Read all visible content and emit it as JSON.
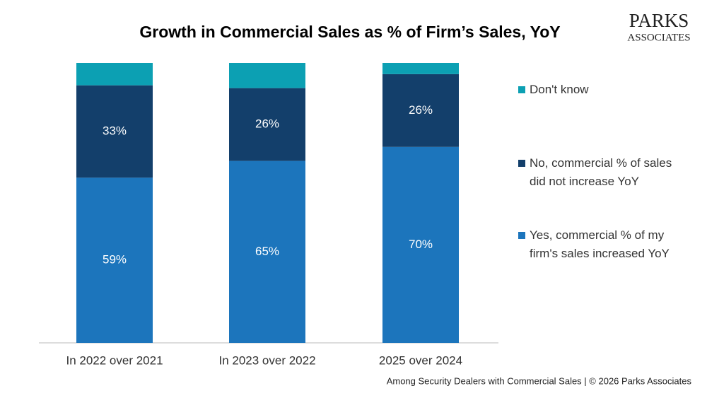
{
  "chart_data": {
    "type": "stacked_bar",
    "title": "Growth in Commercial Sales as % of Firm’s Sales, YoY",
    "logo": [
      "PARKS",
      "ASSOCIATES"
    ],
    "footnote": "Among Security Dealers with Commercial Sales | © 2026 Parks Associates",
    "categories": [
      "In 2022 over 2021",
      "In 2023 over 2022",
      "2025 over 2024"
    ],
    "ylim": [
      0,
      100
    ],
    "series": [
      {
        "name": "Yes, commercial % of my firm's  sales increased YoY",
        "color": "#1c75bc",
        "values": [
          59,
          65,
          70
        ],
        "value_labels": [
          "59%",
          "65%",
          "70%"
        ]
      },
      {
        "name": "No, commercial % of sales did not increase YoY",
        "color": "#133f6b",
        "values": [
          33,
          26,
          26
        ],
        "value_labels": [
          "33%",
          "26%",
          "26%"
        ]
      },
      {
        "name": "Don't know",
        "color": "#0ca0b3",
        "values": [
          8,
          9,
          4
        ]
      }
    ]
  }
}
